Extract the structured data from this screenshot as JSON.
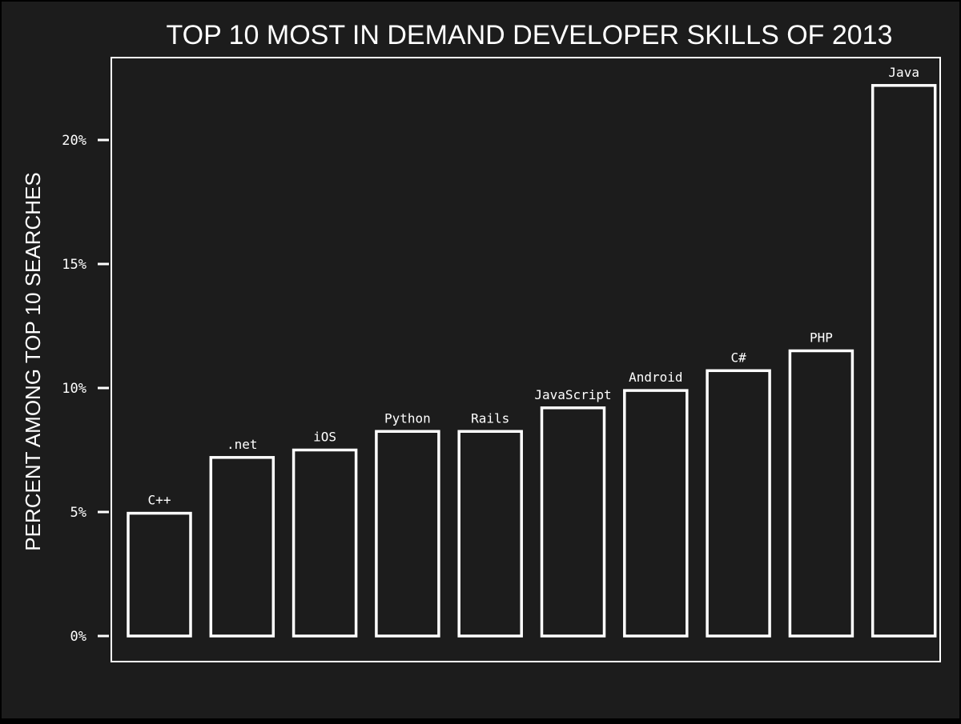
{
  "colors": {
    "background": "#1c1c1c",
    "outer_frame": "#000000",
    "foreground": "#ffffff"
  },
  "chart_data": {
    "type": "bar",
    "title": "TOP 10 MOST IN DEMAND DEVELOPER SKILLS OF 2013",
    "xlabel": "",
    "ylabel": "PERCENT AMONG TOP 10 SEARCHES",
    "categories": [
      "C++",
      ".net",
      "iOS",
      "Python",
      "Rails",
      "JavaScript",
      "Android",
      "C#",
      "PHP",
      "Java"
    ],
    "values": [
      4.95,
      7.2,
      7.5,
      8.25,
      8.25,
      9.2,
      9.9,
      10.7,
      11.5,
      22.2
    ],
    "ylim": [
      0,
      23.3
    ],
    "yticks": [
      0,
      5,
      10,
      15,
      20
    ],
    "ytick_labels": [
      "0%",
      "5%",
      "10%",
      "15%",
      "20%"
    ],
    "grid": false,
    "legend": "none",
    "bar_style": "outlined"
  }
}
